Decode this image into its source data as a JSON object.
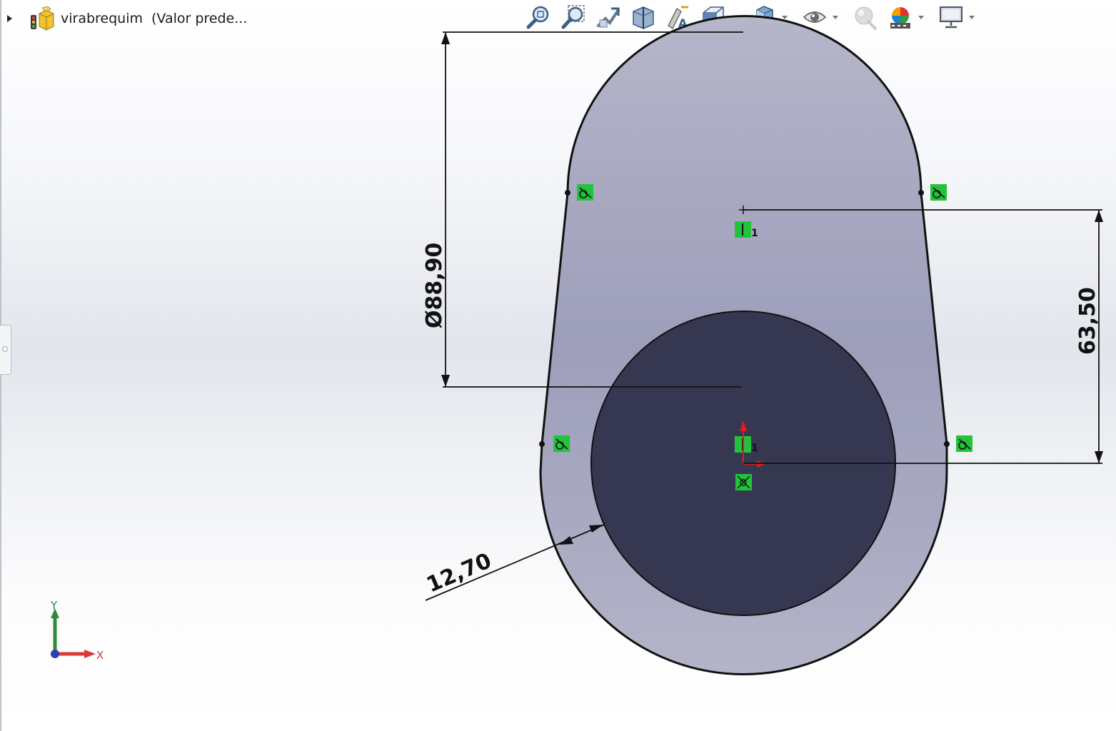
{
  "feature_tree": {
    "part_name": "virabrequim",
    "configuration": "(Valor prede..."
  },
  "heads_up_toolbar": [
    {
      "name": "zoom-to-fit",
      "icon": "zoom-to-fit-icon"
    },
    {
      "name": "zoom-to-area",
      "icon": "zoom-to-area-icon"
    },
    {
      "name": "previous-view",
      "icon": "previous-view-icon"
    },
    {
      "name": "section-view",
      "icon": "section-view-icon"
    },
    {
      "name": "dynamic-annotation",
      "icon": "dynamic-annotation-icon"
    },
    {
      "name": "view-orientation",
      "icon": "view-orientation-icon",
      "dropdown": true
    },
    {
      "name": "display-style",
      "icon": "display-style-icon",
      "dropdown": true
    },
    {
      "name": "hide-show-items",
      "icon": "eye-icon",
      "dropdown": true
    },
    {
      "name": "edit-appearance",
      "icon": "appearance-icon"
    },
    {
      "name": "apply-scene",
      "icon": "scene-icon",
      "dropdown": true
    },
    {
      "name": "view-settings",
      "icon": "monitor-icon",
      "dropdown": true
    }
  ],
  "dimensions": {
    "diameter": "Ø88,90",
    "center_distance": "63,50",
    "offset": "12,70"
  },
  "relations": {
    "vertical_label": "1"
  },
  "triad": {
    "x": "X",
    "y": "Y"
  },
  "colors": {
    "profile_fill": "#a4a6be",
    "boss_fill": "#363852",
    "relation_green": "#22c33a",
    "origin_red": "#e21b1b"
  }
}
